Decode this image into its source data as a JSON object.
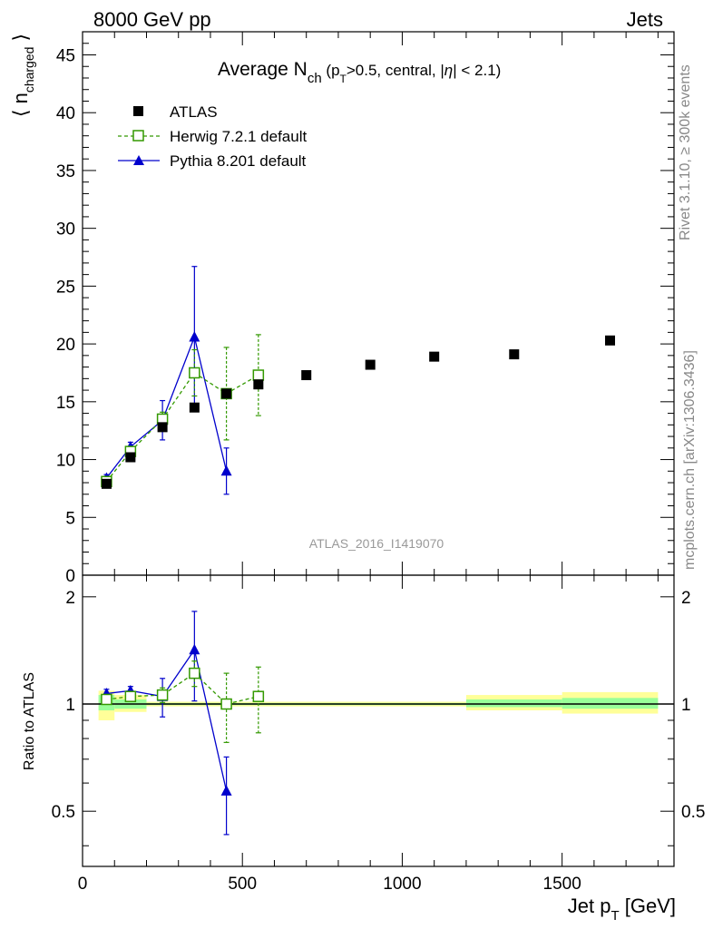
{
  "header": {
    "left": "8000 GeV pp",
    "right": "Jets"
  },
  "side_labels": {
    "rivet": "Rivet 3.1.10, ≥ 300k events",
    "mcplots": "mcplots.cern.ch [arXiv:1306.3436]"
  },
  "chart_data": [
    {
      "type": "scatter",
      "title": "Average N_ch (p_T>0.5, central, |η| < 2.1)",
      "ylabel": "⟨ n_charged ⟩",
      "xlabel": "Jet p_T [GeV]",
      "xlim": [
        0,
        1850
      ],
      "ylim": [
        0,
        47
      ],
      "yticks": [
        0,
        5,
        10,
        15,
        20,
        25,
        30,
        35,
        40,
        45
      ],
      "watermark": "ATLAS_2016_I1419070",
      "legend_position": "top-left",
      "series": [
        {
          "name": "ATLAS",
          "style": "data",
          "color": "#000000",
          "x": [
            75,
            150,
            250,
            350,
            450,
            550,
            700,
            900,
            1100,
            1350,
            1650
          ],
          "values": [
            7.9,
            10.2,
            12.8,
            14.5,
            15.7,
            16.5,
            17.3,
            18.2,
            18.9,
            19.1,
            20.3
          ]
        },
        {
          "name": "Herwig 7.2.1 default",
          "style": "dashed-open-square",
          "color": "#339900",
          "x": [
            75,
            150,
            250,
            350,
            450,
            550
          ],
          "values": [
            8.1,
            10.7,
            13.5,
            17.5,
            15.7,
            17.3
          ],
          "err": [
            0.3,
            0.4,
            0.6,
            2.0,
            4.0,
            3.5
          ]
        },
        {
          "name": "Pythia 8.201 default",
          "style": "solid-triangle",
          "color": "#0000cc",
          "x": [
            75,
            150,
            250,
            350,
            450
          ],
          "values": [
            8.4,
            11.1,
            13.4,
            20.6,
            9.0
          ],
          "err": [
            0.3,
            0.4,
            1.7,
            6.1,
            2.0
          ]
        }
      ]
    },
    {
      "type": "scatter",
      "title": "",
      "ylabel": "Ratio to ATLAS",
      "xlabel": "Jet p_T [GeV]",
      "xlim": [
        0,
        1850
      ],
      "ylim": [
        0.35,
        2.3
      ],
      "yticks": [
        0.5,
        1,
        2
      ],
      "xticks": [
        0,
        500,
        1000,
        1500
      ],
      "bands": [
        {
          "x0": 50,
          "x1": 100,
          "yellow": [
            0.9,
            1.09
          ],
          "green": [
            0.96,
            1.06
          ]
        },
        {
          "x0": 100,
          "x1": 200,
          "yellow": [
            0.95,
            1.06
          ],
          "green": [
            0.97,
            1.03
          ]
        },
        {
          "x0": 200,
          "x1": 1200,
          "yellow": [
            0.985,
            1.015
          ],
          "green": [
            0.993,
            1.007
          ]
        },
        {
          "x0": 1200,
          "x1": 1500,
          "yellow": [
            0.96,
            1.06
          ],
          "green": [
            0.98,
            1.03
          ]
        },
        {
          "x0": 1500,
          "x1": 1800,
          "yellow": [
            0.94,
            1.08
          ],
          "green": [
            0.97,
            1.04
          ]
        }
      ],
      "series": [
        {
          "name": "Herwig 7.2.1 default",
          "color": "#339900",
          "x": [
            75,
            150,
            250,
            350,
            450,
            550
          ],
          "values": [
            1.03,
            1.05,
            1.06,
            1.22,
            1.0,
            1.05
          ],
          "err": [
            0.02,
            0.03,
            0.05,
            0.1,
            0.22,
            0.22
          ]
        },
        {
          "name": "Pythia 8.201 default",
          "color": "#0000cc",
          "x": [
            75,
            150,
            250,
            350,
            450
          ],
          "values": [
            1.07,
            1.09,
            1.05,
            1.42,
            0.57
          ],
          "err": [
            0.03,
            0.03,
            0.13,
            0.4,
            0.14
          ]
        }
      ]
    }
  ]
}
